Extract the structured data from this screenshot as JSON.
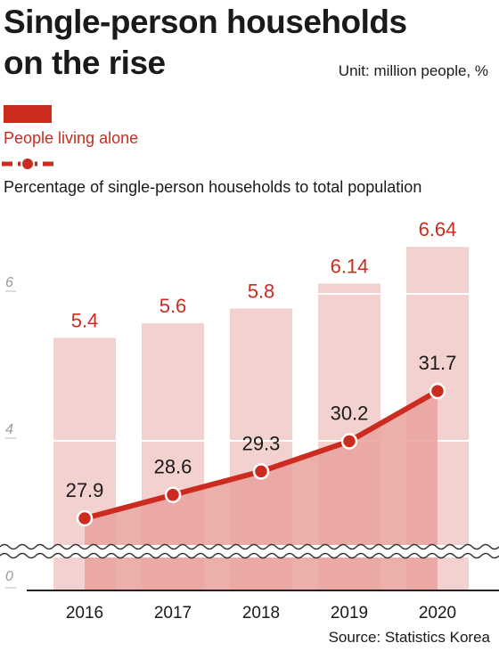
{
  "title_line1": "Single-person households",
  "title_line2": "on the rise",
  "unit": "Unit: million people, %",
  "source": "Source: Statistics Korea",
  "colors": {
    "bar": "#f3d1cf",
    "bar_top": "#f7e0de",
    "area": "#e8a29c",
    "line": "#cc2b20",
    "accent_text": "#cc2b20"
  },
  "chart_data": {
    "type": "bar",
    "categories": [
      "2016",
      "2017",
      "2018",
      "2019",
      "2020"
    ],
    "series": [
      {
        "name": "People living alone",
        "values": [
          5.4,
          5.6,
          5.8,
          6.14,
          6.64
        ],
        "labels": [
          "5.4",
          "5.6",
          "5.8",
          "6.14",
          "6.64"
        ],
        "type": "bar"
      },
      {
        "name": "Percentage of single-person households to total population",
        "values": [
          27.9,
          28.6,
          29.3,
          30.2,
          31.7
        ],
        "labels": [
          "27.9",
          "28.6",
          "29.3",
          "30.2",
          "31.7"
        ],
        "type": "line"
      }
    ],
    "y_ticks": [
      "0",
      "4",
      "6"
    ],
    "axis_break": true
  }
}
